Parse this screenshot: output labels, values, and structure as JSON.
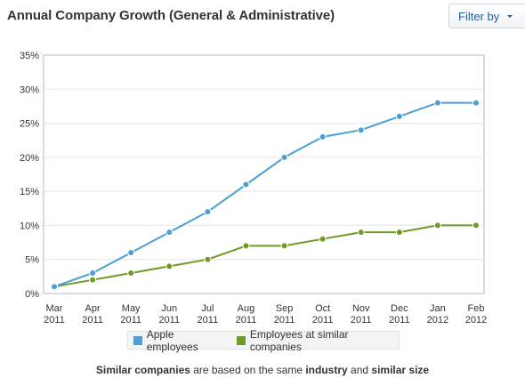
{
  "header": {
    "title": "Annual Company Growth (General & Administrative)",
    "filter_label": "Filter by"
  },
  "chart_data": {
    "type": "line",
    "categories": [
      [
        "Mar",
        "2011"
      ],
      [
        "Apr",
        "2011"
      ],
      [
        "May",
        "2011"
      ],
      [
        "Jun",
        "2011"
      ],
      [
        "Jul",
        "2011"
      ],
      [
        "Aug",
        "2011"
      ],
      [
        "Sep",
        "2011"
      ],
      [
        "Oct",
        "2011"
      ],
      [
        "Nov",
        "2011"
      ],
      [
        "Dec",
        "2011"
      ],
      [
        "Jan",
        "2012"
      ],
      [
        "Feb",
        "2012"
      ]
    ],
    "y_ticks": [
      "0%",
      "5%",
      "10%",
      "15%",
      "20%",
      "25%",
      "30%",
      "35%"
    ],
    "ylim": [
      0,
      35
    ],
    "grid": true,
    "legend_position": "bottom",
    "series": [
      {
        "name": "Apple employees",
        "color": "#4b9fd5",
        "values": [
          1,
          3,
          6,
          9,
          12,
          16,
          20,
          23,
          24,
          26,
          28,
          28
        ]
      },
      {
        "name": "Employees at similar companies",
        "color": "#6f9a27",
        "values": [
          1,
          2,
          3,
          4,
          5,
          7,
          7,
          8,
          9,
          9,
          10,
          10
        ]
      }
    ]
  },
  "footnote": {
    "part1": "Similar companies",
    "part2": " are based on the same ",
    "part3": "industry",
    "part4": " and ",
    "part5": "similar size"
  }
}
